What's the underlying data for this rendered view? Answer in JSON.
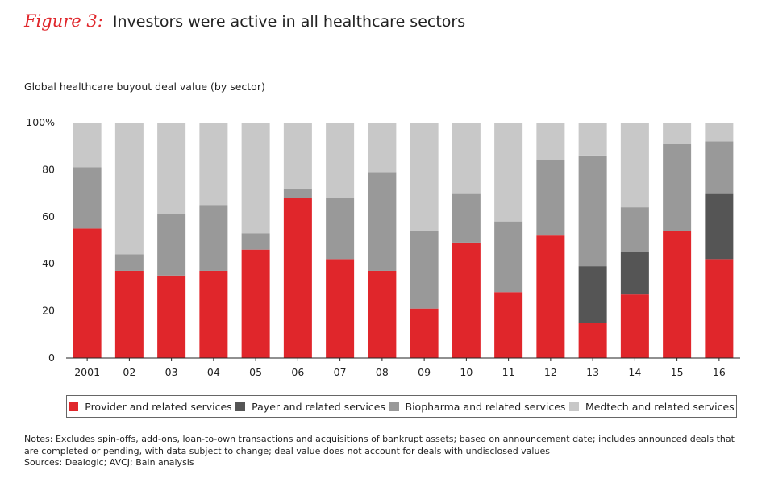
{
  "header": {
    "figure_label": "Figure 3:",
    "title": "Investors were active in all healthcare sectors"
  },
  "subtitle": "Global healthcare buyout deal value (by sector)",
  "chart_data": {
    "type": "bar",
    "stacked": true,
    "title": "Global healthcare buyout deal value (by sector)",
    "xlabel": "",
    "ylabel": "",
    "ylim": [
      0,
      100
    ],
    "yticks": [
      "0",
      "20",
      "40",
      "60",
      "80",
      "100%"
    ],
    "ytick_values": [
      0,
      20,
      40,
      60,
      80,
      100
    ],
    "categories": [
      "2001",
      "02",
      "03",
      "04",
      "05",
      "06",
      "07",
      "08",
      "09",
      "10",
      "11",
      "12",
      "13",
      "14",
      "15",
      "16"
    ],
    "series": [
      {
        "name": "Provider and related services",
        "color": "#e0262b",
        "values": [
          55,
          37,
          35,
          37,
          46,
          68,
          42,
          37,
          21,
          49,
          28,
          52,
          15,
          27,
          54,
          42
        ]
      },
      {
        "name": "Payer and related services",
        "color": "#555555",
        "values": [
          0,
          0,
          0,
          0,
          0,
          0,
          0,
          0,
          0,
          0,
          0,
          0,
          24,
          18,
          0,
          28
        ]
      },
      {
        "name": "Biopharma and related services",
        "color": "#999999",
        "values": [
          26,
          7,
          26,
          28,
          7,
          4,
          26,
          42,
          33,
          21,
          30,
          32,
          47,
          19,
          37,
          22
        ]
      },
      {
        "name": "Medtech and related services",
        "color": "#c8c8c8",
        "values": [
          19,
          56,
          39,
          35,
          47,
          28,
          32,
          21,
          46,
          30,
          42,
          16,
          14,
          36,
          9,
          8
        ]
      }
    ],
    "legend_position": "bottom",
    "grid": false
  },
  "notes": {
    "line1": "Notes: Excludes spin-offs, add-ons, loan-to-own transactions and acquisitions of bankrupt assets; based on announcement date; includes announced deals that are completed or pending, with data subject to change; deal value does not account for deals with undisclosed values",
    "line2": "Sources: Dealogic; AVCJ; Bain analysis"
  }
}
